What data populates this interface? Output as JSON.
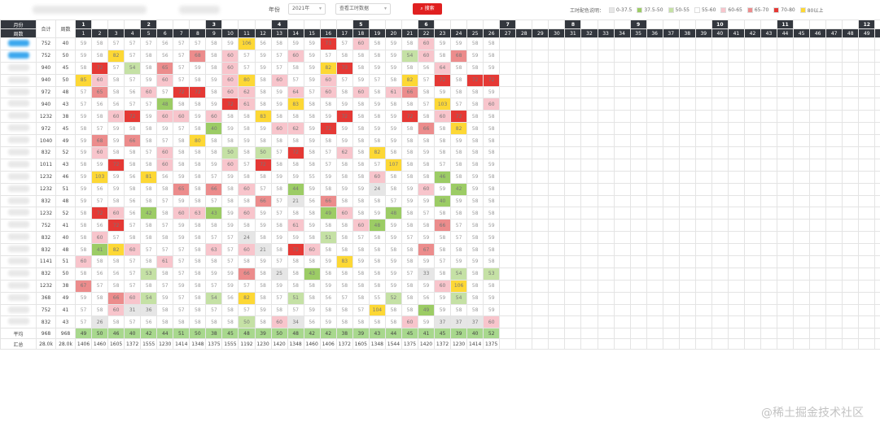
{
  "toolbar": {
    "year_label": "年份",
    "year_value": "2021年",
    "mode_value": "查看工时数据",
    "search_label": "搜索",
    "legend_title": "工时配色说明："
  },
  "legend": [
    {
      "label": "0-37.5",
      "color": "#e6e6e6"
    },
    {
      "label": "37.5-50",
      "color": "#9ccc65"
    },
    {
      "label": "50-55",
      "color": "#c5e1a5"
    },
    {
      "label": "55-60",
      "color": "#ffffff"
    },
    {
      "label": "60-65",
      "color": "#f8c5cc"
    },
    {
      "label": "65-70",
      "color": "#ec8c8c"
    },
    {
      "label": "70-80",
      "color": "#e53935"
    },
    {
      "label": "80以上",
      "color": "#fdd835"
    }
  ],
  "headers": {
    "month_label": "月份",
    "week_label": "周数",
    "total_label": "合计",
    "weeks_label": "周数"
  },
  "months": [
    "1",
    "2",
    "3",
    "4",
    "5",
    "6",
    "7",
    "8",
    "9",
    "10",
    "11",
    "12"
  ],
  "rows": [
    {
      "total": "752",
      "weeks": "40",
      "cells": [
        "59",
        "58",
        "57",
        "57",
        "57",
        "56",
        "57",
        "57",
        "58",
        "59",
        "106",
        "56",
        "58",
        "59",
        "59",
        "73",
        "57",
        "60",
        "58",
        "59",
        "58",
        "60",
        "59",
        "59",
        "58",
        "58"
      ]
    },
    {
      "total": "752",
      "weeks": "50",
      "cells": [
        "59",
        "58",
        "82",
        "57",
        "58",
        "56",
        "57",
        "68",
        "58",
        "60",
        "57",
        "59",
        "57",
        "60",
        "59",
        "57",
        "58",
        "58",
        "58",
        "59",
        "54",
        "60",
        "58",
        "68",
        "59",
        "58"
      ]
    },
    {
      "total": "940",
      "weeks": "45",
      "cells": [
        "58",
        "72",
        "57",
        "54",
        "58",
        "65",
        "57",
        "59",
        "58",
        "60",
        "57",
        "59",
        "57",
        "58",
        "59",
        "82",
        "73",
        "58",
        "59",
        "59",
        "58",
        "56",
        "64",
        "58",
        "58",
        "59"
      ]
    },
    {
      "total": "940",
      "weeks": "50",
      "cells": [
        "85",
        "60",
        "58",
        "57",
        "59",
        "60",
        "57",
        "58",
        "59",
        "60",
        "80",
        "58",
        "60",
        "57",
        "59",
        "60",
        "57",
        "59",
        "57",
        "58",
        "82",
        "57",
        "72",
        "58",
        "72",
        "72"
      ]
    },
    {
      "total": "972",
      "weeks": "48",
      "cells": [
        "57",
        "65",
        "58",
        "56",
        "60",
        "57",
        "72",
        "72",
        "58",
        "60",
        "62",
        "58",
        "59",
        "64",
        "57",
        "60",
        "58",
        "60",
        "58",
        "61",
        "66",
        "58",
        "59",
        "58",
        "58",
        "59"
      ]
    },
    {
      "total": "940",
      "weeks": "43",
      "cells": [
        "57",
        "56",
        "56",
        "57",
        "57",
        "48",
        "58",
        "58",
        "59",
        "72",
        "61",
        "58",
        "59",
        "83",
        "58",
        "58",
        "59",
        "58",
        "59",
        "58",
        "58",
        "57",
        "103",
        "57",
        "58",
        "60"
      ]
    },
    {
      "total": "1232",
      "weeks": "38",
      "cells": [
        "59",
        "58",
        "60",
        "72",
        "59",
        "60",
        "60",
        "59",
        "60",
        "58",
        "58",
        "83",
        "58",
        "58",
        "58",
        "59",
        "72",
        "58",
        "58",
        "59",
        "72",
        "58",
        "60",
        "72",
        "58",
        "58"
      ]
    },
    {
      "total": "972",
      "weeks": "45",
      "cells": [
        "58",
        "57",
        "59",
        "58",
        "58",
        "59",
        "57",
        "58",
        "40",
        "59",
        "58",
        "59",
        "60",
        "62",
        "59",
        "72",
        "59",
        "58",
        "59",
        "59",
        "58",
        "66",
        "58",
        "82",
        "58",
        "58"
      ]
    },
    {
      "total": "1040",
      "weeks": "49",
      "cells": [
        "59",
        "68",
        "59",
        "66",
        "58",
        "57",
        "58",
        "80",
        "58",
        "58",
        "59",
        "58",
        "58",
        "58",
        "59",
        "58",
        "59",
        "58",
        "58",
        "59",
        "58",
        "58",
        "58",
        "59",
        "58",
        "58"
      ]
    },
    {
      "total": "832",
      "weeks": "52",
      "cells": [
        "59",
        "60",
        "58",
        "58",
        "57",
        "60",
        "58",
        "58",
        "58",
        "50",
        "58",
        "50",
        "57",
        "72",
        "58",
        "57",
        "62",
        "58",
        "82",
        "58",
        "58",
        "59",
        "58",
        "58",
        "58",
        "58"
      ]
    },
    {
      "total": "1011",
      "weeks": "43",
      "cells": [
        "58",
        "59",
        "72",
        "58",
        "58",
        "60",
        "58",
        "58",
        "59",
        "60",
        "57",
        "72",
        "58",
        "58",
        "58",
        "57",
        "58",
        "58",
        "57",
        "107",
        "58",
        "58",
        "57",
        "58",
        "58",
        "59"
      ]
    },
    {
      "total": "1232",
      "weeks": "46",
      "cells": [
        "59",
        "103",
        "59",
        "56",
        "81",
        "56",
        "59",
        "58",
        "57",
        "59",
        "58",
        "58",
        "59",
        "59",
        "55",
        "59",
        "58",
        "58",
        "60",
        "58",
        "58",
        "58",
        "46",
        "58",
        "59",
        "58"
      ]
    },
    {
      "total": "1232",
      "weeks": "51",
      "cells": [
        "59",
        "56",
        "59",
        "58",
        "58",
        "58",
        "65",
        "58",
        "66",
        "58",
        "60",
        "57",
        "58",
        "44",
        "59",
        "58",
        "59",
        "59",
        "24",
        "58",
        "59",
        "60",
        "59",
        "42",
        "59",
        "58"
      ]
    },
    {
      "total": "832",
      "weeks": "48",
      "cells": [
        "59",
        "57",
        "58",
        "56",
        "58",
        "57",
        "59",
        "58",
        "57",
        "58",
        "58",
        "66",
        "57",
        "21",
        "56",
        "66",
        "58",
        "58",
        "58",
        "57",
        "59",
        "59",
        "40",
        "59",
        "58",
        "58"
      ]
    },
    {
      "total": "1232",
      "weeks": "52",
      "cells": [
        "58",
        "72",
        "60",
        "56",
        "42",
        "58",
        "60",
        "63",
        "43",
        "59",
        "60",
        "59",
        "57",
        "58",
        "58",
        "49",
        "60",
        "58",
        "59",
        "48",
        "58",
        "57",
        "58",
        "58",
        "58",
        "58"
      ]
    },
    {
      "total": "752",
      "weeks": "41",
      "cells": [
        "58",
        "56",
        "72",
        "57",
        "58",
        "57",
        "59",
        "58",
        "58",
        "59",
        "58",
        "59",
        "58",
        "61",
        "59",
        "58",
        "58",
        "60",
        "48",
        "59",
        "58",
        "58",
        "66",
        "57",
        "58",
        "59"
      ]
    },
    {
      "total": "832",
      "weeks": "40",
      "cells": [
        "58",
        "60",
        "57",
        "58",
        "58",
        "58",
        "59",
        "58",
        "57",
        "57",
        "24",
        "58",
        "59",
        "59",
        "58",
        "51",
        "58",
        "57",
        "58",
        "59",
        "57",
        "59",
        "58",
        "57",
        "58",
        "59"
      ]
    },
    {
      "total": "832",
      "weeks": "48",
      "cells": [
        "58",
        "41",
        "82",
        "60",
        "57",
        "57",
        "57",
        "58",
        "63",
        "57",
        "60",
        "21",
        "58",
        "72",
        "60",
        "58",
        "58",
        "58",
        "58",
        "58",
        "58",
        "67",
        "58",
        "58",
        "58",
        "58"
      ]
    },
    {
      "total": "1141",
      "weeks": "51",
      "cells": [
        "60",
        "58",
        "58",
        "57",
        "58",
        "61",
        "57",
        "58",
        "58",
        "57",
        "58",
        "59",
        "57",
        "58",
        "58",
        "59",
        "83",
        "59",
        "58",
        "59",
        "58",
        "59",
        "57",
        "59",
        "59",
        "58"
      ]
    },
    {
      "total": "832",
      "weeks": "50",
      "cells": [
        "58",
        "56",
        "56",
        "57",
        "53",
        "58",
        "57",
        "58",
        "59",
        "59",
        "66",
        "58",
        "25",
        "58",
        "43",
        "58",
        "58",
        "58",
        "58",
        "59",
        "57",
        "33",
        "58",
        "54",
        "58",
        "53"
      ]
    },
    {
      "total": "1232",
      "weeks": "38",
      "cells": [
        "67",
        "57",
        "58",
        "57",
        "58",
        "57",
        "59",
        "58",
        "57",
        "59",
        "57",
        "58",
        "59",
        "58",
        "58",
        "59",
        "58",
        "58",
        "58",
        "59",
        "58",
        "59",
        "60",
        "106",
        "58",
        "58"
      ]
    },
    {
      "total": "368",
      "weeks": "49",
      "cells": [
        "59",
        "58",
        "66",
        "60",
        "54",
        "59",
        "57",
        "58",
        "54",
        "56",
        "82",
        "58",
        "57",
        "51",
        "58",
        "56",
        "57",
        "58",
        "55",
        "52",
        "58",
        "56",
        "59",
        "54",
        "58",
        "59"
      ]
    },
    {
      "total": "752",
      "weeks": "41",
      "cells": [
        "57",
        "58",
        "60",
        "31",
        "36",
        "58",
        "57",
        "58",
        "57",
        "58",
        "57",
        "59",
        "58",
        "57",
        "59",
        "58",
        "58",
        "57",
        "104",
        "58",
        "58",
        "49",
        "59",
        "58",
        "58",
        "59"
      ]
    },
    {
      "total": "832",
      "weeks": "43",
      "cells": [
        "57",
        "26",
        "58",
        "57",
        "56",
        "58",
        "58",
        "58",
        "58",
        "58",
        "50",
        "58",
        "60",
        "34",
        "56",
        "59",
        "58",
        "58",
        "58",
        "58",
        "60",
        "59",
        "37",
        "37",
        "37",
        "60"
      ]
    }
  ],
  "avg": {
    "label": "平均",
    "total": "968",
    "weeks": "968",
    "cells": [
      "49",
      "50",
      "46",
      "40",
      "42",
      "44",
      "51",
      "50",
      "38",
      "45",
      "48",
      "39",
      "50",
      "48",
      "42",
      "42",
      "38",
      "39",
      "43",
      "44",
      "45",
      "41",
      "45",
      "39",
      "40",
      "52"
    ]
  },
  "sum": {
    "label": "汇总",
    "total": "28.0k",
    "weeks": "28.0k",
    "cells": [
      "1406",
      "1460",
      "1605",
      "1372",
      "1555",
      "1230",
      "1414",
      "1348",
      "1375",
      "1555",
      "1192",
      "1230",
      "1420",
      "1348",
      "1460",
      "1406",
      "1372",
      "1605",
      "1348",
      "1544",
      "1375",
      "1420",
      "1372",
      "1230",
      "1414",
      "1375"
    ]
  },
  "watermark": "@稀土掘金技术社区"
}
